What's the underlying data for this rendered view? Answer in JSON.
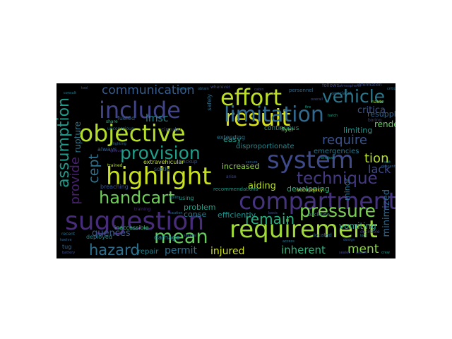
{
  "wordcloud": {
    "background": "#000000",
    "words": [
      {
        "text": "compartment",
        "color": "#46337e"
      },
      {
        "text": "requirement",
        "color": "#a0da39"
      },
      {
        "text": "highlight",
        "color": "#c8e020"
      },
      {
        "text": "system",
        "color": "#3e4a89"
      },
      {
        "text": "objective",
        "color": "#b5de2b"
      },
      {
        "text": "suggestion",
        "color": "#472c7a"
      },
      {
        "text": "include",
        "color": "#414487"
      },
      {
        "text": "result",
        "color": "#d8e219"
      },
      {
        "text": "effort",
        "color": "#bddf26"
      },
      {
        "text": "limitation",
        "color": "#31688e"
      },
      {
        "text": "provision",
        "color": "#1f9e89"
      },
      {
        "text": "mean",
        "color": "#65cb5e"
      },
      {
        "text": "pressure",
        "color": "#7ad151"
      },
      {
        "text": "vehicle",
        "color": "#2a788e"
      },
      {
        "text": "technique",
        "color": "#443983"
      },
      {
        "text": "handcart",
        "color": "#6ece58"
      },
      {
        "text": "assumption",
        "color": "#1f9a8a"
      },
      {
        "text": "provide",
        "color": "#482071"
      },
      {
        "text": "hazard",
        "color": "#2e6f8e"
      },
      {
        "text": "remain",
        "color": "#29af7f"
      },
      {
        "text": "communication",
        "color": "#365d8d"
      },
      {
        "text": "require",
        "color": "#3b528b"
      },
      {
        "text": "tion",
        "color": "#b5de2b"
      },
      {
        "text": "cept",
        "color": "#2c728e"
      },
      {
        "text": "lack",
        "color": "#3e4a89"
      },
      {
        "text": "inherent",
        "color": "#2fb47c"
      },
      {
        "text": "ment",
        "color": "#8bd646"
      },
      {
        "text": "permit",
        "color": "#2d708e"
      },
      {
        "text": "injured",
        "color": "#d0e11c"
      },
      {
        "text": "minimized",
        "color": "#31688e"
      },
      {
        "text": "vomiting",
        "color": "#1f9e89"
      },
      {
        "text": "quences",
        "color": "#38588c"
      },
      {
        "text": "lmsc",
        "color": "#26828e"
      },
      {
        "text": "rupture",
        "color": "#2a788e"
      },
      {
        "text": "aiding",
        "color": "#b8de29"
      },
      {
        "text": "developing",
        "color": "#28ae80"
      },
      {
        "text": "critica",
        "color": "#3b528b"
      },
      {
        "text": "limiting",
        "color": "#1f948c"
      },
      {
        "text": "render",
        "color": "#65cb5e"
      },
      {
        "text": "resupply",
        "color": "#31688e"
      },
      {
        "text": "efficiently",
        "color": "#21918c"
      },
      {
        "text": "conse",
        "color": "#287c8e"
      },
      {
        "text": "problem",
        "color": "#1fa188"
      },
      {
        "text": "increased",
        "color": "#95d840"
      },
      {
        "text": "repair",
        "color": "#26828e"
      },
      {
        "text": "easy",
        "color": "#1fa088"
      },
      {
        "text": "minor",
        "color": "#2c728e"
      },
      {
        "text": "disproportionate",
        "color": "#24878e"
      },
      {
        "text": "extravehicular",
        "color": "#c0df25"
      },
      {
        "text": "continuous",
        "color": "#1f958b"
      },
      {
        "text": "emergencies",
        "color": "#2a778e"
      },
      {
        "text": "always",
        "color": "#34618d"
      },
      {
        "text": "sortie",
        "color": "#2c738e"
      },
      {
        "text": "backup",
        "color": "#3b528b"
      },
      {
        "text": "damage",
        "color": "#23888e"
      },
      {
        "text": "deployed",
        "color": "#23888e"
      },
      {
        "text": "inaccessible",
        "color": "#38b977"
      },
      {
        "text": "breaching",
        "color": "#3a548c"
      },
      {
        "text": "using",
        "color": "#1f9a8a"
      },
      {
        "text": "located",
        "color": "#2d708e"
      },
      {
        "text": "backside",
        "color": "#24868e"
      },
      {
        "text": "recommendations",
        "color": "#1e9b8a"
      },
      {
        "text": "personnel",
        "color": "#31688e"
      },
      {
        "text": "follows",
        "color": "#3f4788"
      },
      {
        "text": "fueled",
        "color": "#35608d"
      },
      {
        "text": "circular",
        "color": "#3b528b"
      },
      {
        "text": "extending",
        "color": "#2a778e"
      },
      {
        "text": "flyer",
        "color": "#6ece58"
      },
      {
        "text": "occupancy",
        "color": "#fde725"
      },
      {
        "text": "safely",
        "color": "#2d708e"
      },
      {
        "text": "tug",
        "color": "#31688e"
      },
      {
        "text": "wherever",
        "color": "#3e4989"
      },
      {
        "text": "specialist",
        "color": "#2e6e8e"
      },
      {
        "text": "trained",
        "color": "#b5de2b"
      },
      {
        "text": "information",
        "color": "#3b528b"
      },
      {
        "text": "atmospheric",
        "color": "#3e4a89"
      },
      {
        "text": "recent",
        "color": "#2c728e"
      },
      {
        "text": "twelve",
        "color": "#33638d"
      },
      {
        "text": "battery",
        "color": "#3b528b"
      },
      {
        "text": "desirable",
        "color": "#3e4a89"
      },
      {
        "text": "share",
        "color": "#35b779"
      },
      {
        "text": "unconscious",
        "color": "#2a788e"
      },
      {
        "text": "training",
        "color": "#482878"
      },
      {
        "text": "rescue",
        "color": "#472d7b"
      },
      {
        "text": "arise",
        "color": "#3e4a89"
      },
      {
        "text": "nauts",
        "color": "#a0da39"
      },
      {
        "text": "boring",
        "color": "#3e4a89"
      },
      {
        "text": "overall",
        "color": "#3b528b"
      },
      {
        "text": "critical",
        "color": "#2c728e"
      },
      {
        "text": "tool",
        "color": "#365c8d"
      },
      {
        "text": "consult",
        "color": "#287d8e"
      },
      {
        "text": "concern",
        "color": "#2e6f8e"
      },
      {
        "text": "obtain",
        "color": "#2f6c8e"
      },
      {
        "text": "cabin",
        "color": "#3f4889"
      },
      {
        "text": "fire",
        "color": "#1fa188"
      },
      {
        "text": "hatch",
        "color": "#20a386"
      },
      {
        "text": "secure",
        "color": "#33638d"
      },
      {
        "text": "ability",
        "color": "#26828e"
      },
      {
        "text": "basis",
        "color": "#3b528b"
      },
      {
        "text": "caution",
        "color": "#2e6e8e"
      },
      {
        "text": "design",
        "color": "#365d8d"
      },
      {
        "text": "access",
        "color": "#2a788e"
      },
      {
        "text": "ascent",
        "color": "#3e4a89"
      },
      {
        "text": "crew",
        "color": "#1f968b"
      },
      {
        "text": "descent",
        "color": "#33638d"
      },
      {
        "text": "several",
        "color": "#2f6b8e"
      },
      {
        "text": "lighting",
        "color": "#31688e"
      },
      {
        "text": "sealed",
        "color": "#3e4989"
      },
      {
        "text": "lock",
        "color": "#26828e"
      },
      {
        "text": "suit",
        "color": "#21908d"
      },
      {
        "text": "window",
        "color": "#1f948c"
      }
    ]
  }
}
